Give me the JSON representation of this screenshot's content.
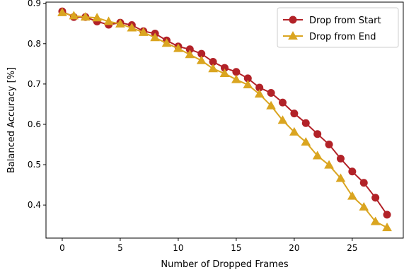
{
  "chart_data": {
    "type": "line",
    "xlabel": "Number of Dropped Frames",
    "ylabel": "Balanced Accuracy [%]",
    "xlim": [
      -1.4,
      29.4
    ],
    "ylim": [
      0.318,
      0.903
    ],
    "xticks": [
      0,
      5,
      10,
      15,
      20,
      25
    ],
    "yticks": [
      0.4,
      0.5,
      0.6,
      0.7,
      0.8,
      0.9
    ],
    "grid": false,
    "legend_position": "top-right",
    "series": [
      {
        "name": "Drop from Start",
        "color": "#b22228",
        "marker": "circle",
        "x": [
          0,
          1,
          2,
          3,
          4,
          5,
          6,
          7,
          8,
          9,
          10,
          11,
          12,
          13,
          14,
          15,
          16,
          17,
          18,
          19,
          20,
          21,
          22,
          23,
          24,
          25,
          26,
          27,
          28
        ],
        "values": [
          0.88,
          0.866,
          0.866,
          0.855,
          0.847,
          0.852,
          0.846,
          0.831,
          0.825,
          0.808,
          0.793,
          0.786,
          0.775,
          0.755,
          0.74,
          0.73,
          0.714,
          0.691,
          0.678,
          0.654,
          0.627,
          0.603,
          0.576,
          0.55,
          0.515,
          0.483,
          0.455,
          0.418,
          0.376
        ]
      },
      {
        "name": "Drop from End",
        "color": "#daa520",
        "marker": "triangle",
        "x": [
          0,
          1,
          2,
          3,
          4,
          5,
          6,
          7,
          8,
          9,
          10,
          11,
          12,
          13,
          14,
          15,
          16,
          17,
          18,
          19,
          20,
          21,
          22,
          23,
          24,
          25,
          26,
          27,
          28
        ],
        "values": [
          0.877,
          0.869,
          0.866,
          0.864,
          0.855,
          0.849,
          0.839,
          0.828,
          0.815,
          0.801,
          0.788,
          0.773,
          0.758,
          0.738,
          0.726,
          0.711,
          0.698,
          0.675,
          0.646,
          0.61,
          0.581,
          0.556,
          0.522,
          0.499,
          0.466,
          0.422,
          0.395,
          0.359,
          0.344
        ]
      }
    ]
  }
}
